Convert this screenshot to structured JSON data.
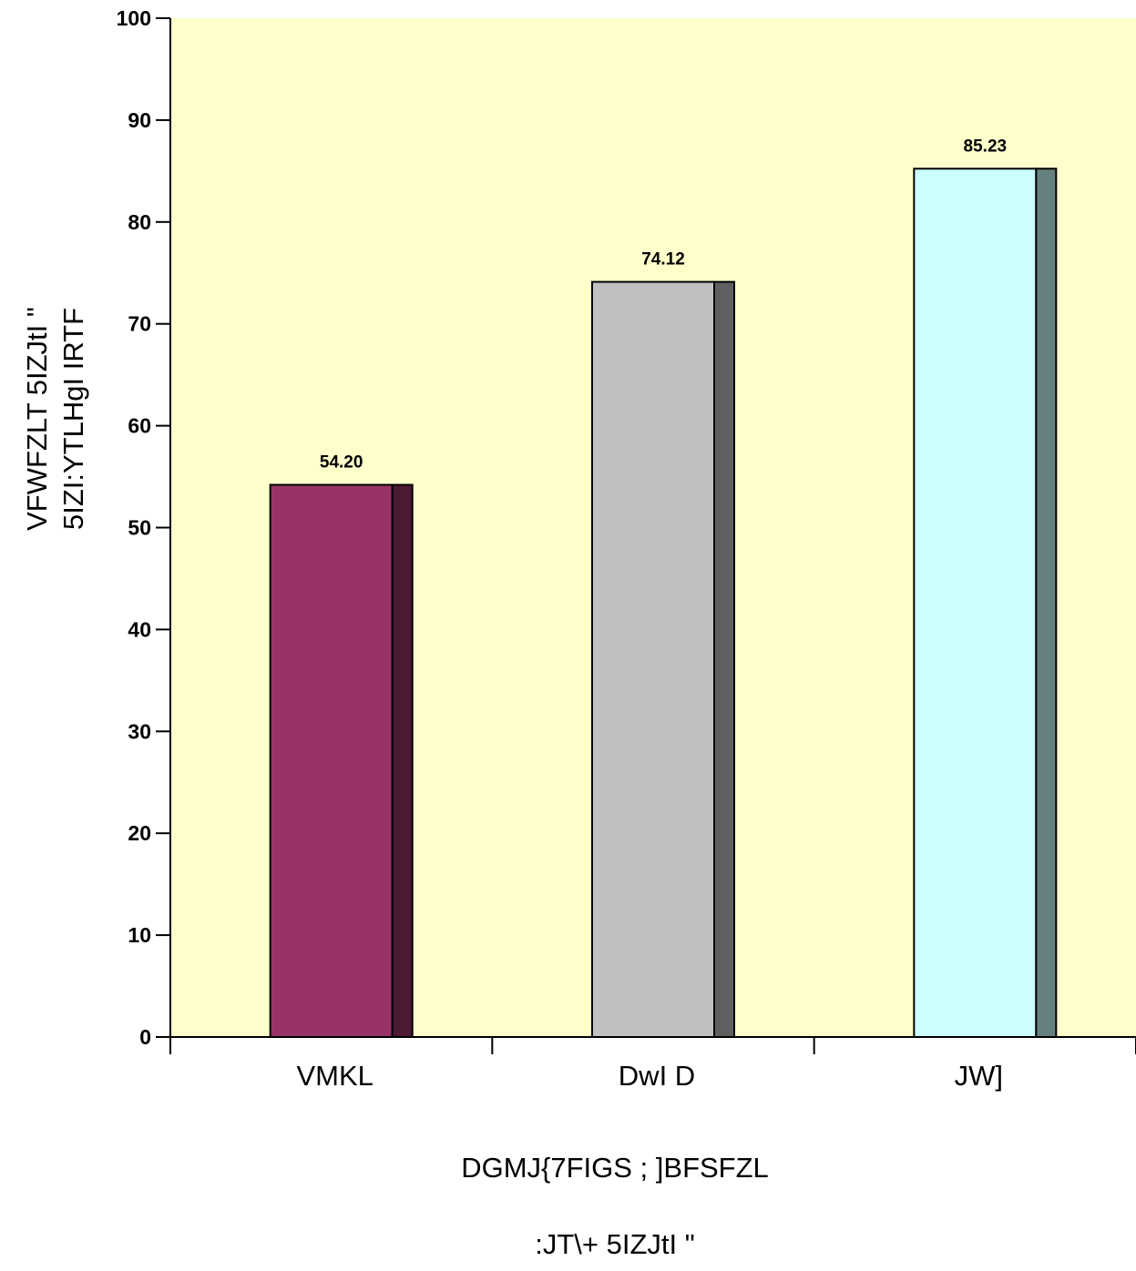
{
  "chart_data": {
    "type": "bar",
    "categories": [
      "VMKL",
      "DwI D",
      "JW]"
    ],
    "values": [
      54.2,
      74.12,
      85.23
    ],
    "value_labels": [
      "54.20",
      "74.12",
      "85.23"
    ],
    "title": "",
    "xlabel_lines": [
      "DGMJ{7FIGS ; ]BFSFZL",
      ":JT\\+ 5IZJtI \""
    ],
    "ylabel_lines": [
      "VFWFZLT 5IZJtI \"",
      "5IZI:YTLHgI IRTF"
    ],
    "ylim": [
      0,
      100
    ],
    "yticks": [
      0,
      10,
      20,
      30,
      40,
      50,
      60,
      70,
      80,
      90,
      100
    ],
    "grid": false,
    "legend": "none",
    "colors": {
      "plot_background": "#FFFFCC",
      "bar_fronts": [
        "#993366",
        "#C0C0C0",
        "#CCFFFF"
      ],
      "bar_sides": [
        "#4D1A33",
        "#606060",
        "#668080"
      ],
      "axis": "#000000"
    }
  }
}
